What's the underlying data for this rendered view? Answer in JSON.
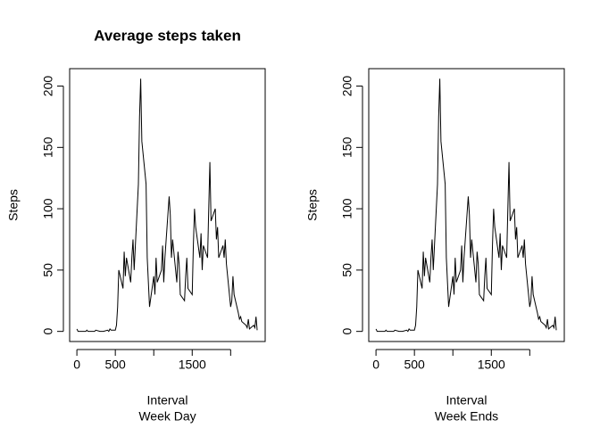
{
  "chart_data": [
    {
      "type": "line",
      "title": "Average steps taken",
      "xlabel": "Interval",
      "subtitle": "Week Day",
      "ylabel": "Steps",
      "x": [
        0,
        15,
        30,
        45,
        100,
        115,
        130,
        145,
        200,
        215,
        230,
        245,
        300,
        315,
        330,
        345,
        400,
        415,
        430,
        445,
        500,
        515,
        530,
        545,
        600,
        615,
        630,
        645,
        700,
        715,
        730,
        745,
        800,
        815,
        830,
        845,
        900,
        915,
        930,
        945,
        1000,
        1015,
        1030,
        1045,
        1100,
        1115,
        1130,
        1145,
        1200,
        1215,
        1230,
        1245,
        1300,
        1315,
        1330,
        1345,
        1400,
        1415,
        1430,
        1445,
        1500,
        1515,
        1530,
        1545,
        1600,
        1615,
        1630,
        1645,
        1700,
        1715,
        1730,
        1745,
        1800,
        1815,
        1830,
        1845,
        1900,
        1915,
        1930,
        1945,
        2000,
        2015,
        2030,
        2045,
        2100,
        2115,
        2130,
        2145,
        2200,
        2215,
        2230,
        2245,
        2300,
        2315,
        2330,
        2345
      ],
      "series": [
        {
          "name": "Steps",
          "color": "#000000",
          "values": [
            2,
            0,
            0,
            0,
            0,
            0,
            1,
            0,
            0,
            0,
            0,
            1,
            0,
            0,
            0,
            0,
            1,
            0,
            2,
            1,
            1,
            5,
            20,
            50,
            35,
            65,
            45,
            60,
            40,
            60,
            75,
            50,
            120,
            175,
            206,
            155,
            120,
            60,
            40,
            20,
            45,
            30,
            60,
            40,
            50,
            70,
            40,
            60,
            110,
            95,
            60,
            75,
            40,
            65,
            55,
            30,
            25,
            45,
            60,
            35,
            30,
            70,
            100,
            85,
            60,
            80,
            50,
            70,
            60,
            100,
            138,
            90,
            100,
            75,
            85,
            60,
            70,
            60,
            75,
            55,
            20,
            25,
            45,
            30,
            15,
            10,
            12,
            8,
            5,
            3,
            10,
            2,
            5,
            3,
            12,
            1
          ]
        }
      ],
      "xlim": [
        -94.2,
        2449.2
      ],
      "ylim": [
        -8.24,
        214.2
      ],
      "xticks": [
        0,
        500,
        {
          "value": 1000,
          "label": null
        },
        1500,
        {
          "value": 2000,
          "label": null
        }
      ],
      "yticks": [
        0,
        50,
        100,
        150,
        200
      ]
    },
    {
      "type": "line",
      "xlabel": "Interval",
      "subtitle": "Week Ends",
      "ylabel": "Steps",
      "x": [
        0,
        15,
        30,
        45,
        100,
        115,
        130,
        145,
        200,
        215,
        230,
        245,
        300,
        315,
        330,
        345,
        400,
        415,
        430,
        445,
        500,
        515,
        530,
        545,
        600,
        615,
        630,
        645,
        700,
        715,
        730,
        745,
        800,
        815,
        830,
        845,
        900,
        915,
        930,
        945,
        1000,
        1015,
        1030,
        1045,
        1100,
        1115,
        1130,
        1145,
        1200,
        1215,
        1230,
        1245,
        1300,
        1315,
        1330,
        1345,
        1400,
        1415,
        1430,
        1445,
        1500,
        1515,
        1530,
        1545,
        1600,
        1615,
        1630,
        1645,
        1700,
        1715,
        1730,
        1745,
        1800,
        1815,
        1830,
        1845,
        1900,
        1915,
        1930,
        1945,
        2000,
        2015,
        2030,
        2045,
        2100,
        2115,
        2130,
        2145,
        2200,
        2215,
        2230,
        2245,
        2300,
        2315,
        2330,
        2345
      ],
      "series": [
        {
          "name": "Steps",
          "color": "#000000",
          "values": [
            2,
            0,
            0,
            0,
            0,
            0,
            1,
            0,
            0,
            0,
            0,
            1,
            0,
            0,
            0,
            0,
            1,
            0,
            2,
            1,
            1,
            5,
            20,
            50,
            35,
            65,
            45,
            60,
            40,
            60,
            75,
            50,
            120,
            175,
            206,
            155,
            120,
            60,
            40,
            20,
            45,
            30,
            60,
            40,
            50,
            70,
            40,
            60,
            110,
            95,
            60,
            75,
            40,
            65,
            55,
            30,
            25,
            45,
            60,
            35,
            30,
            70,
            100,
            85,
            60,
            80,
            50,
            70,
            60,
            100,
            138,
            90,
            100,
            75,
            85,
            60,
            70,
            60,
            75,
            55,
            20,
            25,
            45,
            30,
            15,
            10,
            12,
            8,
            5,
            3,
            10,
            2,
            5,
            3,
            12,
            1
          ]
        }
      ],
      "xlim": [
        -94.2,
        2449.2
      ],
      "ylim": [
        -8.24,
        214.2
      ],
      "xticks": [
        0,
        500,
        {
          "value": 1000,
          "label": null
        },
        1500,
        {
          "value": 2000,
          "label": null
        }
      ],
      "yticks": [
        0,
        50,
        100,
        150,
        200
      ]
    }
  ]
}
